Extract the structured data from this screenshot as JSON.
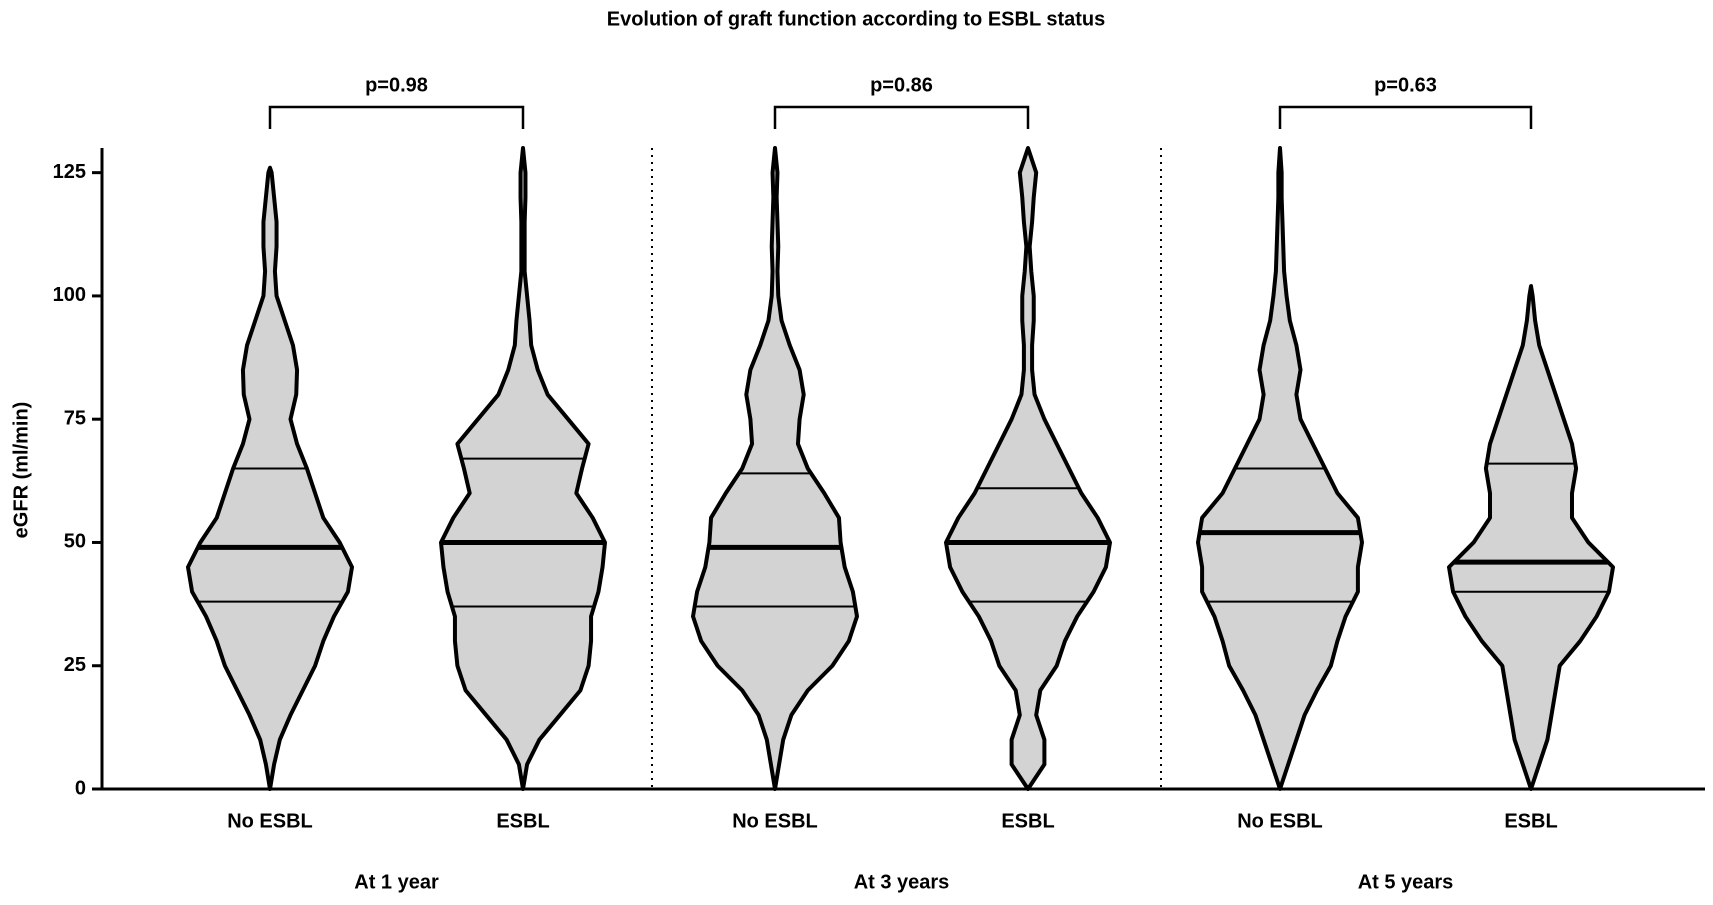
{
  "chart_data": {
    "type": "violin",
    "title": "Evolution of graft function according to ESBL status",
    "ylabel": "eGFR (ml/min)",
    "ylim": [
      0,
      130
    ],
    "yticks": [
      0,
      25,
      50,
      75,
      100,
      125
    ],
    "fill_color": "#d3d3d3",
    "line_color": "#000000",
    "density_levels": [
      0,
      5,
      10,
      15,
      20,
      25,
      30,
      35,
      40,
      45,
      50,
      55,
      60,
      65,
      70,
      75,
      80,
      85,
      90,
      95,
      100,
      105,
      110,
      115,
      120,
      125,
      130
    ],
    "groups": [
      {
        "name": "At 1 year",
        "annotation": "p=0.98",
        "violins": [
          {
            "name": "No ESBL",
            "min": 0,
            "q1": 38,
            "median": 49,
            "q3": 65,
            "max": 126,
            "density": [
              0.02,
              0.05,
              0.12,
              0.25,
              0.4,
              0.55,
              0.65,
              0.78,
              0.95,
              1.0,
              0.85,
              0.65,
              0.55,
              0.45,
              0.33,
              0.25,
              0.32,
              0.33,
              0.28,
              0.18,
              0.08,
              0.06,
              0.08,
              0.08,
              0.05,
              0.02,
              0
            ]
          },
          {
            "name": "ESBL",
            "min": 0,
            "q1": 37,
            "median": 50,
            "q3": 67,
            "max": 130,
            "density": [
              0.02,
              0.05,
              0.2,
              0.45,
              0.7,
              0.8,
              0.83,
              0.83,
              0.92,
              0.97,
              1.0,
              0.85,
              0.65,
              0.72,
              0.8,
              0.55,
              0.3,
              0.18,
              0.1,
              0.08,
              0.05,
              0.02,
              0.02,
              0.02,
              0.03,
              0.03,
              0.01
            ]
          }
        ]
      },
      {
        "name": "At 3 years",
        "annotation": "p=0.86",
        "violins": [
          {
            "name": "No ESBL",
            "min": 0,
            "q1": 37,
            "median": 49,
            "q3": 64,
            "max": 130,
            "density": [
              0.01,
              0.05,
              0.1,
              0.2,
              0.4,
              0.7,
              0.9,
              1.0,
              0.95,
              0.85,
              0.8,
              0.78,
              0.6,
              0.4,
              0.28,
              0.3,
              0.35,
              0.3,
              0.18,
              0.08,
              0.04,
              0.03,
              0.04,
              0.03,
              0.02,
              0.03,
              0.01
            ]
          },
          {
            "name": "ESBL",
            "min": 0,
            "q1": 38,
            "median": 50,
            "q3": 61,
            "max": 130,
            "density": [
              0.03,
              0.2,
              0.2,
              0.1,
              0.15,
              0.35,
              0.45,
              0.6,
              0.8,
              0.95,
              1.0,
              0.85,
              0.65,
              0.5,
              0.35,
              0.2,
              0.08,
              0.05,
              0.05,
              0.07,
              0.07,
              0.04,
              0.02,
              0.05,
              0.07,
              0.1,
              0.02
            ]
          }
        ]
      },
      {
        "name": "At 5 years",
        "annotation": "p=0.63",
        "violins": [
          {
            "name": "No ESBL",
            "min": 0,
            "q1": 38,
            "median": 52,
            "q3": 65,
            "max": 130,
            "density": [
              0.03,
              0.1,
              0.2,
              0.3,
              0.45,
              0.62,
              0.7,
              0.8,
              0.95,
              0.95,
              1.0,
              0.95,
              0.7,
              0.55,
              0.4,
              0.25,
              0.2,
              0.25,
              0.2,
              0.12,
              0.08,
              0.05,
              0.04,
              0.03,
              0.02,
              0.02,
              0.02
            ]
          },
          {
            "name": "ESBL",
            "min": 0,
            "q1": 40,
            "median": 46,
            "q3": 66,
            "max": 102,
            "density": [
              0.02,
              0.1,
              0.2,
              0.25,
              0.3,
              0.35,
              0.6,
              0.8,
              0.95,
              1.0,
              0.7,
              0.5,
              0.5,
              0.55,
              0.5,
              0.4,
              0.3,
              0.2,
              0.1,
              0.05,
              0.02,
              0,
              0,
              0,
              0,
              0,
              0
            ]
          }
        ]
      }
    ]
  }
}
